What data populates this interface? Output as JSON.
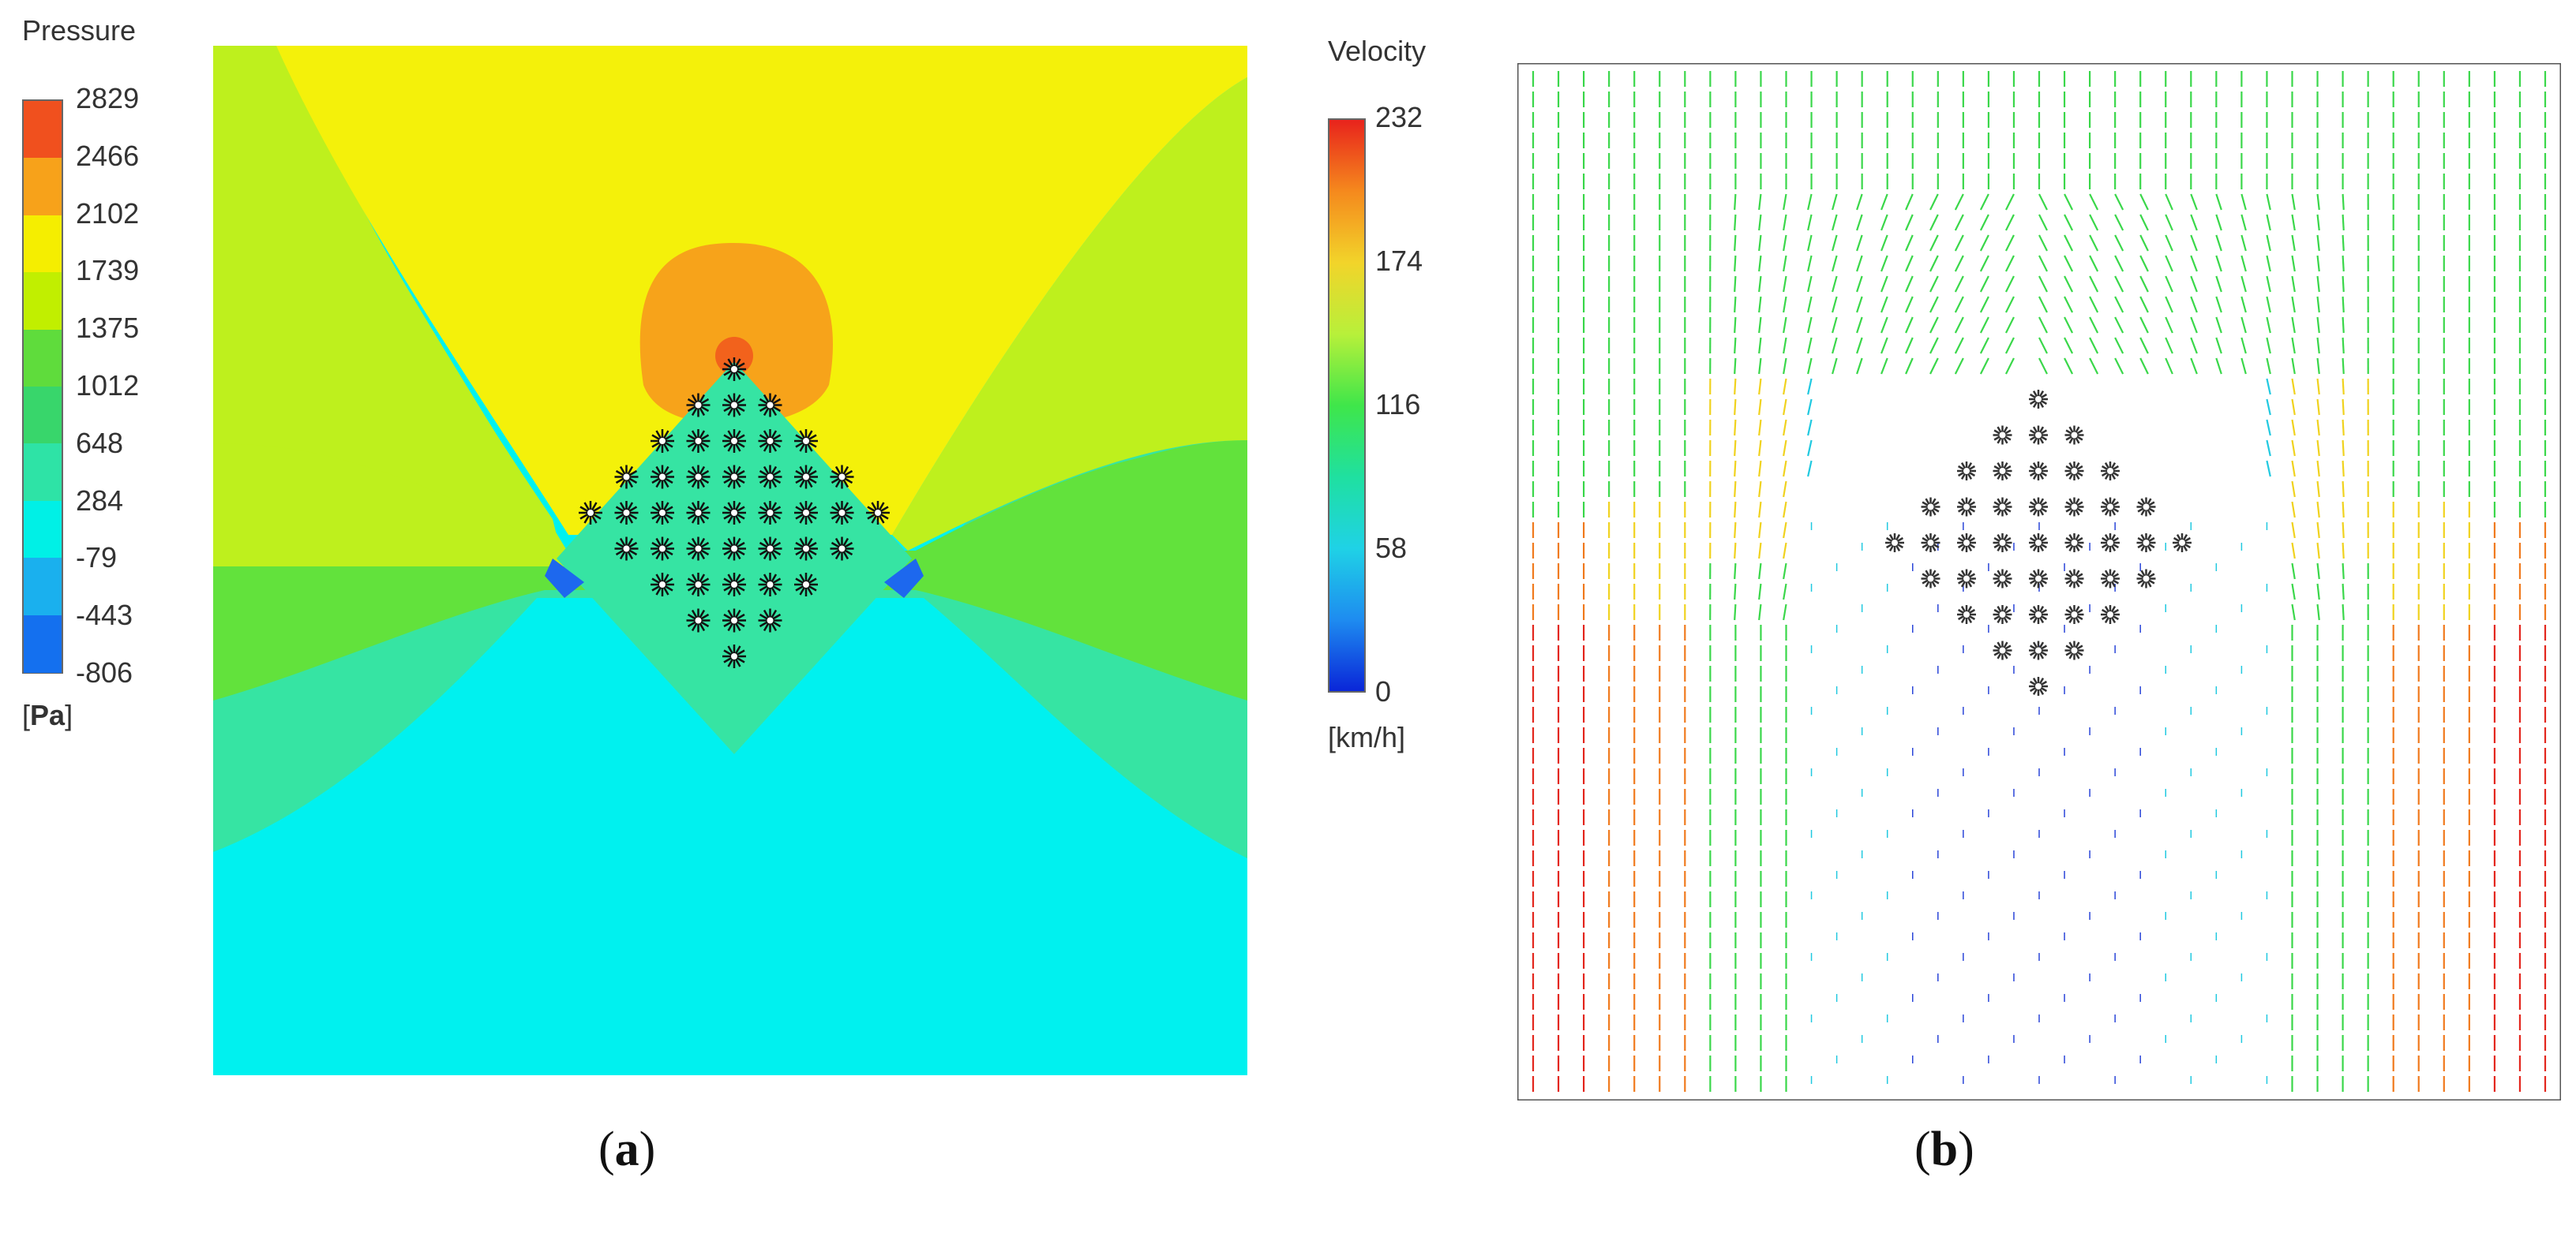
{
  "panel_a": {
    "legend_title": "Pressure",
    "unit_open": "[",
    "unit": "Pa",
    "unit_close": "]",
    "ticks": [
      "2829",
      "2466",
      "2102",
      "1739",
      "1375",
      "1012",
      "648",
      "284",
      "-79",
      "-443",
      "-806"
    ],
    "scale_colors": [
      "#f0501e",
      "#f7a21a",
      "#f5ee00",
      "#c1ef00",
      "#5fdc3c",
      "#38d66b",
      "#2ee3a6",
      "#00f0e6",
      "#1ab0ee",
      "#1470ef",
      "#0a3ee8"
    ],
    "caption_open": "(",
    "caption_letter": "a",
    "caption_close": ")",
    "colors": {
      "yellow": "#f4f10a",
      "orange": "#f7a31a",
      "dark_orange": "#f2621c",
      "yellow_green": "#bef01d",
      "green": "#62e23c",
      "mint": "#36e4a3",
      "cyan": "#00f1ef",
      "blue": "#1d68ee"
    },
    "icons": [
      "star-marker-icon"
    ]
  },
  "panel_b": {
    "legend_title": "Velocity",
    "unit": "[km/h]",
    "ticks": [
      "232",
      "174",
      "116",
      "58",
      "0"
    ],
    "scale_stops": [
      "#e8231c",
      "#f5891d",
      "#f2d42a",
      "#b8f03a",
      "#3fe64a",
      "#1fe0a0",
      "#1fd2e6",
      "#1e8cf0",
      "#0a26d8"
    ],
    "caption_open": "(",
    "caption_letter": "b",
    "caption_close": ")",
    "colors": {
      "red": "#e3261d",
      "orange": "#f07a1d",
      "yellow": "#f0d21e",
      "green": "#3ad74a",
      "cyan": "#21c9e0",
      "blue": "#2a45d8"
    },
    "icons": [
      "velocity-arrow-icon",
      "star-marker-icon"
    ]
  }
}
